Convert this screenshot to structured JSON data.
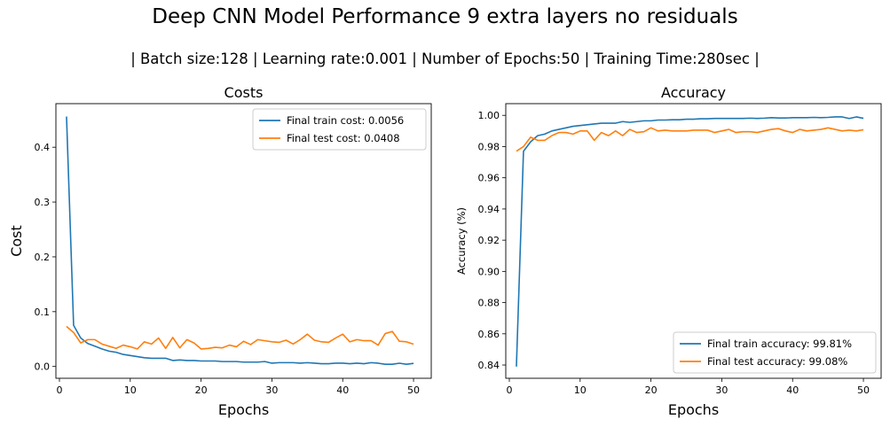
{
  "figure": {
    "title": "Deep CNN Model Performance 9 extra layers no residuals",
    "subtitle": "| Batch size:128 | Learning rate:0.001 | Number of Epochs:50 | Training Time:280sec |"
  },
  "colors": {
    "train": "#1f77b4",
    "test": "#ff7f0e"
  },
  "chart_data": [
    {
      "type": "line",
      "title": "Costs",
      "xlabel": "Epochs",
      "ylabel": "Cost",
      "xlim": [
        -0.5,
        52.5
      ],
      "ylim": [
        -0.0215,
        0.4795
      ],
      "xticks": [
        0,
        10,
        20,
        30,
        40,
        50
      ],
      "yticks": [
        0.0,
        0.1,
        0.2,
        0.3,
        0.4
      ],
      "ytick_labels": [
        "0.0",
        "0.1",
        "0.2",
        "0.3",
        "0.4"
      ],
      "legend_position": "upper right",
      "grid": false,
      "x": [
        1,
        2,
        3,
        4,
        5,
        6,
        7,
        8,
        9,
        10,
        11,
        12,
        13,
        14,
        15,
        16,
        17,
        18,
        19,
        20,
        21,
        22,
        23,
        24,
        25,
        26,
        27,
        28,
        29,
        30,
        31,
        32,
        33,
        34,
        35,
        36,
        37,
        38,
        39,
        40,
        41,
        42,
        43,
        44,
        45,
        46,
        47,
        48,
        49,
        50
      ],
      "series": [
        {
          "name": "Final train cost: 0.0056",
          "color": "train",
          "values": [
            0.456,
            0.075,
            0.052,
            0.042,
            0.037,
            0.032,
            0.028,
            0.026,
            0.022,
            0.02,
            0.018,
            0.016,
            0.015,
            0.015,
            0.015,
            0.011,
            0.012,
            0.011,
            0.011,
            0.01,
            0.01,
            0.01,
            0.009,
            0.009,
            0.009,
            0.008,
            0.008,
            0.008,
            0.009,
            0.006,
            0.007,
            0.007,
            0.007,
            0.006,
            0.007,
            0.006,
            0.005,
            0.005,
            0.006,
            0.006,
            0.005,
            0.006,
            0.005,
            0.007,
            0.006,
            0.004,
            0.004,
            0.006,
            0.004,
            0.0056
          ]
        },
        {
          "name": "Final test cost: 0.0408",
          "color": "test",
          "values": [
            0.073,
            0.062,
            0.043,
            0.049,
            0.049,
            0.041,
            0.037,
            0.033,
            0.039,
            0.036,
            0.032,
            0.045,
            0.041,
            0.052,
            0.033,
            0.053,
            0.034,
            0.049,
            0.043,
            0.032,
            0.033,
            0.035,
            0.034,
            0.039,
            0.036,
            0.046,
            0.04,
            0.049,
            0.047,
            0.045,
            0.044,
            0.048,
            0.041,
            0.049,
            0.059,
            0.048,
            0.045,
            0.044,
            0.052,
            0.059,
            0.045,
            0.049,
            0.047,
            0.047,
            0.039,
            0.06,
            0.064,
            0.046,
            0.045,
            0.0408
          ]
        }
      ]
    },
    {
      "type": "line",
      "title": "Accuracy",
      "xlabel": "Epochs",
      "ylabel": "Accuracy (%)",
      "xlim": [
        -0.5,
        52.5
      ],
      "ylim": [
        0.8315,
        1.0075
      ],
      "xticks": [
        0,
        10,
        20,
        30,
        40,
        50
      ],
      "yticks": [
        0.84,
        0.86,
        0.88,
        0.9,
        0.92,
        0.94,
        0.96,
        0.98,
        1.0
      ],
      "ytick_labels": [
        "0.84",
        "0.86",
        "0.88",
        "0.90",
        "0.92",
        "0.94",
        "0.96",
        "0.98",
        "1.00"
      ],
      "legend_position": "lower right",
      "grid": false,
      "x": [
        1,
        2,
        3,
        4,
        5,
        6,
        7,
        8,
        9,
        10,
        11,
        12,
        13,
        14,
        15,
        16,
        17,
        18,
        19,
        20,
        21,
        22,
        23,
        24,
        25,
        26,
        27,
        28,
        29,
        30,
        31,
        32,
        33,
        34,
        35,
        36,
        37,
        38,
        39,
        40,
        41,
        42,
        43,
        44,
        45,
        46,
        47,
        48,
        49,
        50
      ],
      "series": [
        {
          "name": "Final train accuracy: 99.81%",
          "color": "train",
          "values": [
            0.839,
            0.977,
            0.983,
            0.987,
            0.988,
            0.99,
            0.991,
            0.992,
            0.993,
            0.9935,
            0.994,
            0.9945,
            0.995,
            0.995,
            0.995,
            0.996,
            0.9955,
            0.996,
            0.9965,
            0.9965,
            0.997,
            0.997,
            0.9972,
            0.9972,
            0.9975,
            0.9975,
            0.9978,
            0.9978,
            0.998,
            0.998,
            0.998,
            0.998,
            0.998,
            0.9982,
            0.998,
            0.9982,
            0.9985,
            0.9983,
            0.9983,
            0.9985,
            0.9985,
            0.9985,
            0.9987,
            0.9985,
            0.9987,
            0.999,
            0.999,
            0.998,
            0.999,
            0.9981
          ]
        },
        {
          "name": "Final test accuracy: 99.08%",
          "color": "test",
          "values": [
            0.977,
            0.98,
            0.986,
            0.984,
            0.984,
            0.987,
            0.989,
            0.989,
            0.988,
            0.99,
            0.99,
            0.984,
            0.989,
            0.987,
            0.99,
            0.987,
            0.991,
            0.989,
            0.9895,
            0.992,
            0.99,
            0.9905,
            0.99,
            0.99,
            0.99,
            0.9905,
            0.9905,
            0.9905,
            0.989,
            0.99,
            0.991,
            0.989,
            0.9895,
            0.9895,
            0.989,
            0.99,
            0.991,
            0.9915,
            0.99,
            0.989,
            0.991,
            0.99,
            0.9905,
            0.991,
            0.992,
            0.991,
            0.99,
            0.9905,
            0.99,
            0.9908
          ]
        }
      ]
    }
  ]
}
